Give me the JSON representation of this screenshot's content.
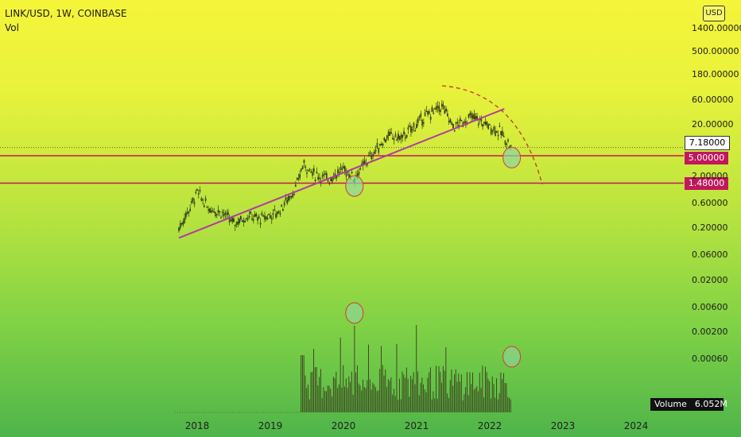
{
  "header": {
    "symbol": "LINK/USD, 1W, COINBASE",
    "indicator": "Vol"
  },
  "currency_badge": "USD",
  "price_tags": {
    "current": "7.18000",
    "line_upper": "5.00000",
    "line_lower": "1.48000"
  },
  "volume_readout": {
    "label": "Volume",
    "value": "6.052M"
  },
  "colors": {
    "candle": "#2f3a1a",
    "trendline": "#b03aa0",
    "hline": "#c2185b",
    "circle_fill": "#8fd6a0",
    "circle_stroke": "#d23a3a",
    "arc": "#c0392b"
  },
  "chart_data": {
    "type": "candlestick",
    "y_scale": "log",
    "x_ticks": [
      "2018",
      "2019",
      "2020",
      "2021",
      "2022",
      "2023",
      "2024"
    ],
    "y_ticks": [
      "1400.00000",
      "500.00000",
      "180.00000",
      "60.00000",
      "20.00000",
      "7.18000",
      "5.00000",
      "2.00000",
      "1.48000",
      "0.60000",
      "0.20000",
      "0.06000",
      "0.02000",
      "0.00600",
      "0.00200",
      "0.00060"
    ],
    "price_path": [
      {
        "date": 2017.75,
        "price": 0.2
      },
      {
        "date": 2017.9,
        "price": 0.5
      },
      {
        "date": 2018.0,
        "price": 1.0
      },
      {
        "date": 2018.15,
        "price": 0.5
      },
      {
        "date": 2018.35,
        "price": 0.4
      },
      {
        "date": 2018.5,
        "price": 0.25
      },
      {
        "date": 2018.7,
        "price": 0.35
      },
      {
        "date": 2018.85,
        "price": 0.3
      },
      {
        "date": 2019.1,
        "price": 0.4
      },
      {
        "date": 2019.35,
        "price": 1.2
      },
      {
        "date": 2019.45,
        "price": 3.5
      },
      {
        "date": 2019.6,
        "price": 2.2
      },
      {
        "date": 2019.8,
        "price": 1.8
      },
      {
        "date": 2020.0,
        "price": 2.8
      },
      {
        "date": 2020.15,
        "price": 1.9
      },
      {
        "date": 2020.35,
        "price": 4.5
      },
      {
        "date": 2020.6,
        "price": 12
      },
      {
        "date": 2020.8,
        "price": 11
      },
      {
        "date": 2021.1,
        "price": 28
      },
      {
        "date": 2021.35,
        "price": 45
      },
      {
        "date": 2021.5,
        "price": 18
      },
      {
        "date": 2021.75,
        "price": 28
      },
      {
        "date": 2021.9,
        "price": 22
      },
      {
        "date": 2022.15,
        "price": 14
      },
      {
        "date": 2022.3,
        "price": 7.18
      }
    ],
    "horizontal_levels": [
      5.0,
      1.48
    ],
    "trendline": [
      {
        "date": 2017.75,
        "price": 0.13
      },
      {
        "date": 2022.2,
        "price": 40
      }
    ],
    "highlight_circles": [
      {
        "date": 2020.15,
        "price": 1.3
      },
      {
        "date": 2022.3,
        "price": 4.6
      }
    ],
    "volume_highlight_circles": [
      {
        "date": 2020.15
      },
      {
        "date": 2022.3
      }
    ],
    "volume_bars": {
      "start": 2019.42,
      "end": 2022.3,
      "spike_dates": [
        2020.15,
        2021.0,
        2022.3
      ]
    }
  }
}
